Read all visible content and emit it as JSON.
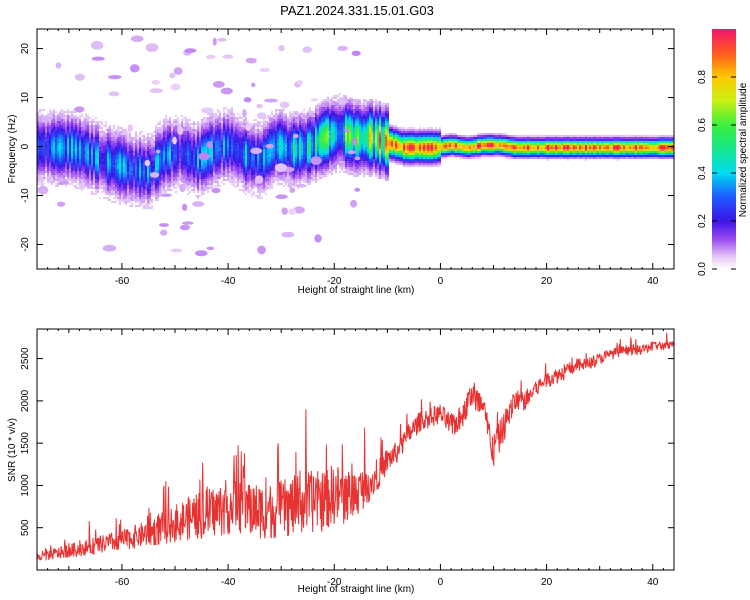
{
  "title": "PAZ1.2024.331.15.01.G03",
  "chart_data": [
    {
      "type": "heatmap",
      "xlabel": "Height of straight line (km)",
      "ylabel": "Frequency (Hz)",
      "xlim": [
        -76,
        44
      ],
      "ylim": [
        -25,
        24
      ],
      "xticks": [
        -60,
        -40,
        -20,
        0,
        20,
        40
      ],
      "xtick_labels": [
        "-60",
        "-40",
        "-20",
        "0",
        "20",
        "40"
      ],
      "yticks": [
        -20,
        -10,
        0,
        10,
        20
      ],
      "ytick_labels": [
        "-20",
        "-10",
        "0",
        "10",
        "20"
      ],
      "colorbar": {
        "label": "Normalized spectral amplitude",
        "range": [
          0,
          1
        ],
        "ticks": [
          0.0,
          0.2,
          0.4,
          0.6,
          0.8
        ],
        "tick_labels": [
          "0.0",
          "0.2",
          "0.4",
          "0.6",
          "0.8"
        ]
      },
      "ridge": {
        "x": [
          -74,
          -70,
          -67,
          -64,
          -61,
          -58,
          -55,
          -52,
          -49,
          -46,
          -43,
          -40,
          -37,
          -34,
          -31,
          -28,
          -25,
          -22,
          -19,
          -16,
          -13,
          -10,
          -7,
          -4,
          -1,
          2,
          5,
          8,
          11,
          14,
          17,
          20,
          25,
          30,
          35,
          40,
          44
        ],
        "y": [
          0,
          0,
          -1,
          -2.5,
          -3.5,
          -4.5,
          -5,
          -1.5,
          -1,
          -2.5,
          -0.5,
          0.5,
          -1.5,
          -2.5,
          0.5,
          -0.5,
          0,
          2,
          3,
          2,
          2,
          1,
          0,
          0,
          0,
          0.5,
          0,
          0.5,
          0.5,
          0,
          0,
          0,
          0,
          0,
          0,
          0,
          0
        ],
        "amplitude": [
          0.25,
          0.3,
          0.3,
          0.3,
          0.3,
          0.28,
          0.3,
          0.3,
          0.25,
          0.28,
          0.3,
          0.28,
          0.3,
          0.3,
          0.3,
          0.4,
          0.45,
          0.45,
          0.5,
          0.55,
          0.6,
          0.85,
          0.85,
          0.88,
          0.9,
          0.85,
          0.88,
          0.88,
          0.88,
          0.9,
          0.9,
          0.9,
          0.9,
          0.9,
          0.9,
          0.9,
          0.9
        ]
      }
    },
    {
      "type": "line",
      "xlabel": "Height of straight line (km)",
      "ylabel": "SNR (10 * v/v)",
      "xlim": [
        -76,
        44
      ],
      "ylim": [
        0,
        2850
      ],
      "xticks": [
        -60,
        -40,
        -20,
        0,
        20,
        40
      ],
      "xtick_labels": [
        "-60",
        "-40",
        "-20",
        "0",
        "20",
        "40"
      ],
      "yticks": [
        500,
        1000,
        1500,
        2000,
        2500
      ],
      "ytick_labels": [
        "500",
        "1000",
        "1500",
        "2000",
        "2500"
      ],
      "series": [
        {
          "color": "#e83232",
          "x": [
            -76,
            -72,
            -68,
            -64,
            -60,
            -56,
            -52,
            -48,
            -45,
            -42,
            -40,
            -38,
            -35,
            -32,
            -30,
            -28,
            -25,
            -22,
            -20,
            -18,
            -16,
            -14,
            -12,
            -10,
            -8,
            -6,
            -4,
            -2,
            0,
            2,
            4,
            6,
            8,
            10,
            12,
            14,
            16,
            18,
            20,
            22,
            25,
            28,
            30,
            32,
            35,
            38,
            40,
            42,
            44
          ],
          "values": [
            150,
            200,
            250,
            300,
            350,
            420,
            500,
            600,
            650,
            700,
            750,
            800,
            700,
            700,
            720,
            750,
            800,
            820,
            900,
            870,
            900,
            1000,
            1100,
            1300,
            1400,
            1600,
            1750,
            1800,
            1850,
            1700,
            1800,
            2100,
            1900,
            1400,
            1700,
            2000,
            2000,
            2150,
            2250,
            2300,
            2400,
            2450,
            2500,
            2550,
            2600,
            2600,
            2650,
            2650,
            2650
          ],
          "noise_amplitude": [
            100,
            120,
            150,
            180,
            200,
            260,
            330,
            420,
            480,
            520,
            560,
            600,
            560,
            560,
            580,
            600,
            620,
            600,
            620,
            560,
            480,
            400,
            300,
            250,
            220,
            220,
            200,
            200,
            200,
            250,
            250,
            300,
            300,
            350,
            300,
            250,
            200,
            180,
            160,
            160,
            140,
            130,
            120,
            110,
            110,
            100,
            100,
            90,
            90
          ]
        }
      ]
    }
  ]
}
